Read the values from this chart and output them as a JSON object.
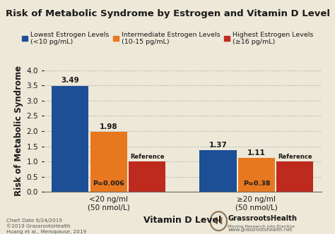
{
  "title": "Risk of Metabolic Syndrome by Estrogen and Vitamin D Level",
  "ylabel": "Risk of Metabolic Syndrome",
  "xlabel": "Vitamin D Level",
  "background_color": "#ede8d8",
  "groups": [
    "<20 ng/ml\n(50 nmol/L)",
    "≥20 ng/ml\n(50 nmol/L)"
  ],
  "series": [
    {
      "label": "Lowest Estrogen Levels\n(<10 pg/mL)",
      "color": "#1c4f96",
      "values": [
        3.49,
        1.37
      ]
    },
    {
      "label": "Intermediate Estrogen Levels\n(10-15 pg/mL)",
      "color": "#e87820",
      "values": [
        1.98,
        1.11
      ]
    },
    {
      "label": "Highest Estrogen Levels\n(≥16 pg/mL)",
      "color": "#bf2a1e",
      "values": [
        1.0,
        1.0
      ]
    }
  ],
  "bar_labels": [
    [
      "3.49",
      "1.37"
    ],
    [
      "1.98",
      "1.11"
    ],
    [
      "Reference",
      "Reference"
    ]
  ],
  "p_values": [
    "P=0.006",
    "P=0.38"
  ],
  "ylim": [
    0,
    4.0
  ],
  "yticks": [
    0.0,
    0.5,
    1.0,
    1.5,
    2.0,
    2.5,
    3.0,
    3.5,
    4.0
  ],
  "bar_width": 0.13,
  "group_centers": [
    0.22,
    0.72
  ],
  "footnote_lines": [
    "Chart Date 6/24/2019",
    "©2019 GrassrootsHealth",
    "Huang et al., Menopause, 2019"
  ],
  "title_fontsize": 9.5,
  "axis_label_fontsize": 8.5,
  "tick_fontsize": 7.5,
  "legend_fontsize": 6.8,
  "bar_label_fontsize": 7.5,
  "p_value_fontsize": 6.8
}
